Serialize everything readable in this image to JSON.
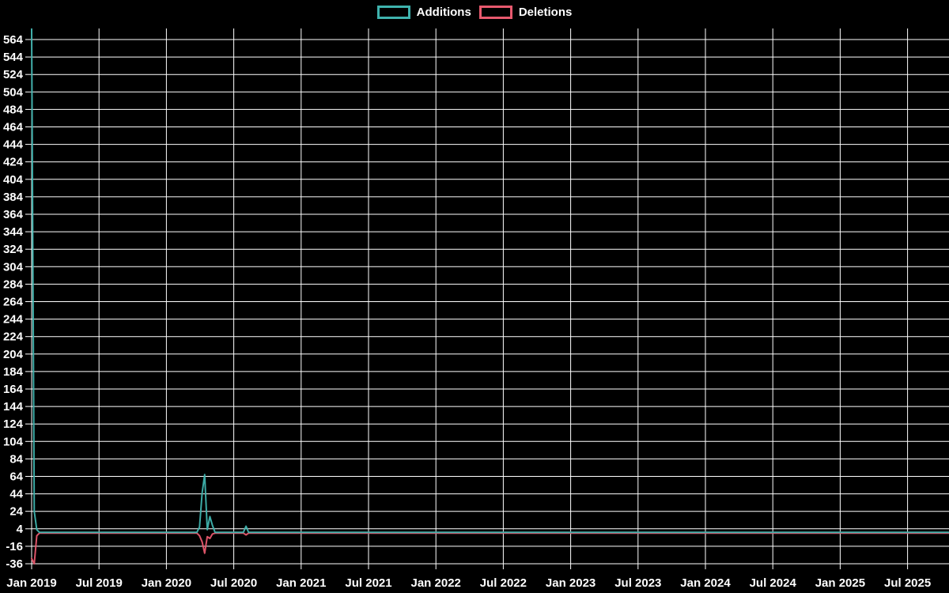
{
  "legend": {
    "items": [
      {
        "label": "Additions",
        "color": "#3FB3AE"
      },
      {
        "label": "Deletions",
        "color": "#E8596E"
      }
    ]
  },
  "chart_data": {
    "type": "line",
    "grid": true,
    "legend_position": "top-center",
    "background_color": "#000000",
    "gridline_color": "#FFFFFF",
    "text_color": "#FFFFFF",
    "x": {
      "tick_labels": [
        "Jan 2019",
        "Jul 2019",
        "Jan 2020",
        "Jul 2020",
        "Jan 2021",
        "Jul 2021",
        "Jan 2022",
        "Jul 2022",
        "Jan 2023",
        "Jul 2023",
        "Jan 2024",
        "Jul 2024",
        "Jan 2025",
        "Jul 2025"
      ],
      "unit": "week",
      "weeks_shown": 356
    },
    "y": {
      "min": -36,
      "max": 564,
      "step": 20,
      "tick_labels": [
        564,
        544,
        524,
        504,
        484,
        464,
        444,
        424,
        404,
        384,
        364,
        344,
        324,
        304,
        284,
        264,
        244,
        224,
        204,
        184,
        164,
        144,
        124,
        104,
        84,
        64,
        44,
        24,
        4,
        -16,
        -36
      ]
    },
    "series": [
      {
        "name": "Additions",
        "color": "#3FB3AE",
        "baseline_value": 0,
        "spike_points": {
          "0": 576,
          "1": 24,
          "2": 3,
          "65": 6,
          "66": 45,
          "67": 66,
          "68": 3,
          "69": 18,
          "70": 8,
          "83": 7
        }
      },
      {
        "name": "Deletions",
        "color": "#E8596E",
        "baseline_value": -1,
        "spike_points": {
          "0": -30,
          "1": -36,
          "2": -4,
          "65": -4,
          "66": -11,
          "67": -24,
          "68": -5,
          "69": -7,
          "70": -2,
          "83": -3
        }
      }
    ]
  }
}
